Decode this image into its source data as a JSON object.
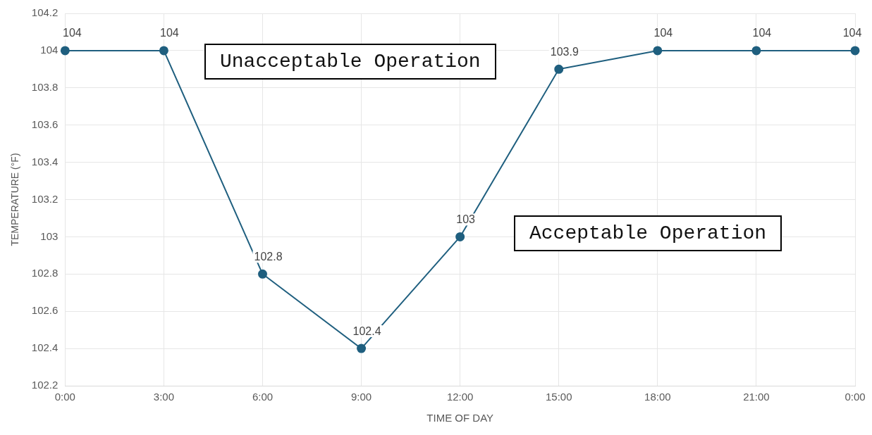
{
  "chart_data": {
    "type": "line",
    "xlabel": "TIME OF DAY",
    "ylabel": "TEMPERATURE (°F)",
    "categories": [
      "0:00",
      "3:00",
      "6:00",
      "9:00",
      "12:00",
      "15:00",
      "18:00",
      "21:00",
      "0:00"
    ],
    "series": [
      {
        "color": "#1f5f7f",
        "values": [
          104,
          104,
          102.8,
          102.4,
          103,
          103.9,
          104,
          104,
          104
        ]
      }
    ],
    "ylim": [
      102.2,
      104.2
    ],
    "yticks": [
      102.2,
      102.4,
      102.6,
      102.8,
      103,
      103.2,
      103.4,
      103.6,
      103.8,
      104,
      104.2
    ],
    "grid": true,
    "legend": false,
    "marker": "circle",
    "line_style": "solid",
    "data_labels": true,
    "annotations": [
      "Unacceptable Operation",
      "Acceptable Operation"
    ]
  }
}
